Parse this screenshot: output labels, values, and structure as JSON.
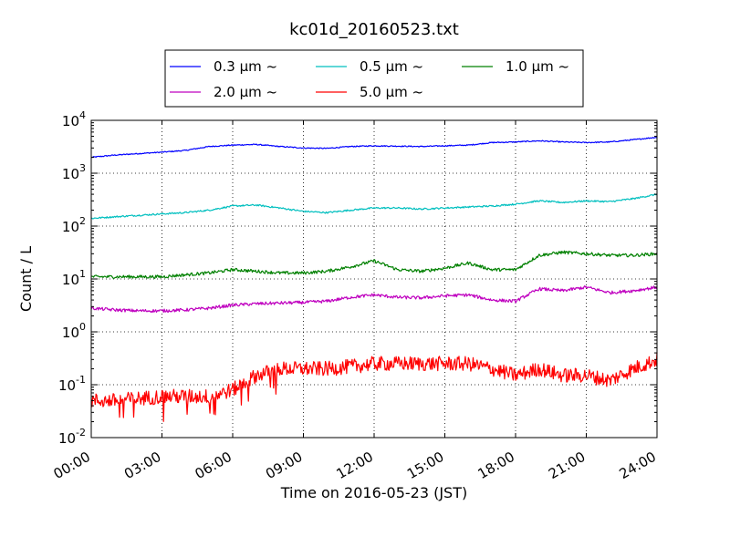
{
  "chart_data": {
    "type": "line",
    "title": "kc01d_20160523.txt",
    "xlabel": "Time on 2016-05-23 (JST)",
    "ylabel": "Count / L",
    "yscale": "log",
    "ylim": [
      0.01,
      10000
    ],
    "xlim": [
      "2016-05-23 00:00",
      "2016-05-24 00:00"
    ],
    "x_ticks": [
      "00:00",
      "03:00",
      "06:00",
      "09:00",
      "12:00",
      "15:00",
      "18:00",
      "21:00",
      "24:00"
    ],
    "y_ticks": [
      {
        "base": "10",
        "exp": "-2"
      },
      {
        "base": "10",
        "exp": "-1"
      },
      {
        "base": "10",
        "exp": "0"
      },
      {
        "base": "10",
        "exp": "1"
      },
      {
        "base": "10",
        "exp": "2"
      },
      {
        "base": "10",
        "exp": "3"
      },
      {
        "base": "10",
        "exp": "4"
      }
    ],
    "grid": true,
    "legend_position": "top",
    "x": [
      "00:00",
      "01:00",
      "02:00",
      "03:00",
      "04:00",
      "05:00",
      "06:00",
      "07:00",
      "08:00",
      "09:00",
      "10:00",
      "11:00",
      "12:00",
      "13:00",
      "14:00",
      "15:00",
      "16:00",
      "17:00",
      "18:00",
      "19:00",
      "20:00",
      "21:00",
      "22:00",
      "23:00",
      "24:00"
    ],
    "series": [
      {
        "name": "0.3 μm ~",
        "color": "#0000ff",
        "noise": 0.01,
        "values": [
          2000,
          2200,
          2350,
          2500,
          2700,
          3200,
          3400,
          3500,
          3200,
          3000,
          2950,
          3200,
          3300,
          3250,
          3200,
          3300,
          3400,
          3800,
          3900,
          4100,
          3900,
          3800,
          3900,
          4300,
          4800
        ]
      },
      {
        "name": "0.5 μm ~",
        "color": "#00bfbf",
        "noise": 0.015,
        "values": [
          140,
          150,
          160,
          170,
          180,
          200,
          240,
          250,
          220,
          190,
          180,
          200,
          220,
          220,
          210,
          220,
          230,
          240,
          260,
          300,
          280,
          300,
          290,
          330,
          400
        ]
      },
      {
        "name": "1.0 μm ~",
        "color": "#008000",
        "noise": 0.03,
        "values": [
          11,
          11,
          11,
          11,
          12,
          13,
          15,
          14,
          13,
          13,
          14,
          17,
          22,
          15,
          14,
          16,
          20,
          15,
          15,
          28,
          32,
          30,
          28,
          28,
          30
        ]
      },
      {
        "name": "2.0 μm ~",
        "color": "#bf00bf",
        "noise": 0.03,
        "values": [
          2.8,
          2.6,
          2.5,
          2.5,
          2.6,
          2.8,
          3.2,
          3.4,
          3.5,
          3.6,
          3.8,
          4.5,
          5.0,
          4.5,
          4.4,
          4.8,
          5.0,
          4.0,
          3.8,
          6.5,
          6.0,
          7.0,
          5.5,
          6.0,
          7.0
        ]
      },
      {
        "name": "5.0 μm ~",
        "color": "#ff0000",
        "noise": 0.14,
        "values": [
          0.05,
          0.05,
          0.055,
          0.06,
          0.06,
          0.06,
          0.08,
          0.15,
          0.2,
          0.2,
          0.2,
          0.22,
          0.25,
          0.25,
          0.25,
          0.25,
          0.25,
          0.2,
          0.15,
          0.2,
          0.15,
          0.15,
          0.12,
          0.2,
          0.3
        ]
      }
    ]
  }
}
